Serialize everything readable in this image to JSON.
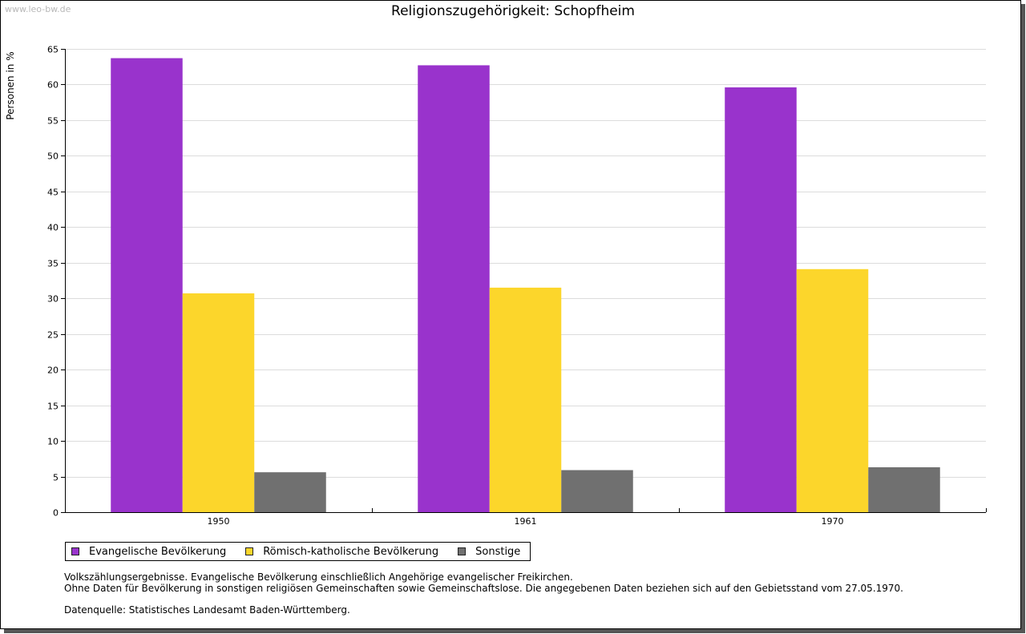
{
  "watermark": "www.leo-bw.de",
  "chart_data": {
    "type": "bar",
    "title": "Religionszugehörigkeit: Schopfheim",
    "xlabel": "",
    "ylabel": "Personen in %",
    "ylim": [
      0,
      65
    ],
    "yticks": [
      0,
      5,
      10,
      15,
      20,
      25,
      30,
      35,
      40,
      45,
      50,
      55,
      60,
      65
    ],
    "categories": [
      "1950",
      "1961",
      "1970"
    ],
    "series": [
      {
        "name": "Evangelische Bevölkerung",
        "color": "#9933cc",
        "values": [
          63.7,
          62.7,
          59.6
        ]
      },
      {
        "name": "Römisch-katholische Bevölkerung",
        "color": "#fcd62b",
        "values": [
          30.7,
          31.5,
          34.1
        ]
      },
      {
        "name": "Sonstige",
        "color": "#707070",
        "values": [
          5.6,
          5.9,
          6.3
        ]
      }
    ],
    "grid": true,
    "legend_position": "bottom-left"
  },
  "notes": {
    "line1": "Volkszählungsergebnisse. Evangelische Bevölkerung einschließlich Angehörige evangelischer Freikirchen.",
    "line2": "Ohne Daten für Bevölkerung in sonstigen religiösen Gemeinschaften sowie Gemeinschaftslose. Die angegebenen Daten beziehen sich auf den Gebietsstand vom 27.05.1970.",
    "source": "Datenquelle: Statistisches Landesamt Baden-Württemberg."
  }
}
